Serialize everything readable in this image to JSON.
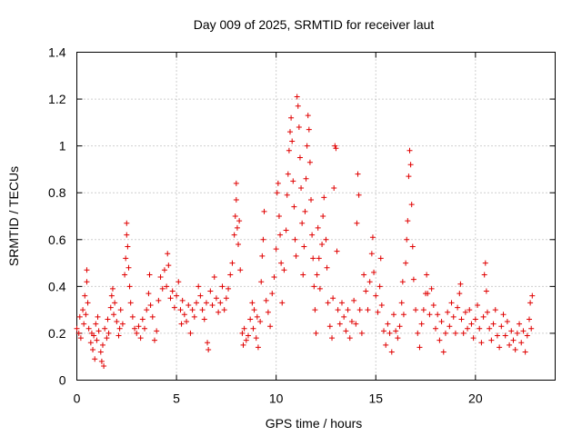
{
  "chart_data": {
    "type": "scatter",
    "title": "Day 009 of 2025, SRMTID for receiver laut",
    "xlabel": "GPS time / hours",
    "ylabel": "SRMTID / TECUs",
    "xlim": [
      0,
      24
    ],
    "ylim": [
      0,
      1.4
    ],
    "xticks": [
      0,
      5,
      10,
      15,
      20
    ],
    "yticks": [
      0,
      0.2,
      0.4,
      0.6,
      0.8,
      1,
      1.2,
      1.4
    ],
    "xtick_labels": [
      "0",
      "5",
      "10",
      "15",
      "20"
    ],
    "ytick_labels": [
      "0",
      "0.2",
      "0.4",
      "0.6",
      "0.8",
      "1",
      "1.2",
      "1.4"
    ],
    "grid": true,
    "marker": "+",
    "color": "#e00000",
    "series": [
      {
        "name": "SRMTID",
        "points": [
          [
            0.0,
            0.22
          ],
          [
            0.1,
            0.2
          ],
          [
            0.15,
            0.27
          ],
          [
            0.2,
            0.18
          ],
          [
            0.3,
            0.3
          ],
          [
            0.35,
            0.24
          ],
          [
            0.4,
            0.36
          ],
          [
            0.45,
            0.28
          ],
          [
            0.5,
            0.47
          ],
          [
            0.5,
            0.42
          ],
          [
            0.55,
            0.33
          ],
          [
            0.6,
            0.22
          ],
          [
            0.7,
            0.16
          ],
          [
            0.75,
            0.2
          ],
          [
            0.8,
            0.13
          ],
          [
            0.85,
            0.19
          ],
          [
            0.9,
            0.09
          ],
          [
            0.95,
            0.24
          ],
          [
            1.0,
            0.17
          ],
          [
            1.05,
            0.27
          ],
          [
            1.1,
            0.21
          ],
          [
            1.2,
            0.12
          ],
          [
            1.25,
            0.08
          ],
          [
            1.3,
            0.15
          ],
          [
            1.35,
            0.06
          ],
          [
            1.4,
            0.22
          ],
          [
            1.5,
            0.18
          ],
          [
            1.55,
            0.26
          ],
          [
            1.6,
            0.2
          ],
          [
            1.7,
            0.31
          ],
          [
            1.75,
            0.36
          ],
          [
            1.8,
            0.39
          ],
          [
            1.85,
            0.28
          ],
          [
            1.9,
            0.33
          ],
          [
            2.0,
            0.25
          ],
          [
            2.1,
            0.19
          ],
          [
            2.15,
            0.22
          ],
          [
            2.2,
            0.3
          ],
          [
            2.3,
            0.24
          ],
          [
            2.4,
            0.45
          ],
          [
            2.45,
            0.52
          ],
          [
            2.5,
            0.62
          ],
          [
            2.5,
            0.67
          ],
          [
            2.55,
            0.57
          ],
          [
            2.6,
            0.48
          ],
          [
            2.65,
            0.4
          ],
          [
            2.7,
            0.33
          ],
          [
            2.8,
            0.27
          ],
          [
            2.9,
            0.22
          ],
          [
            3.0,
            0.2
          ],
          [
            3.1,
            0.23
          ],
          [
            3.2,
            0.18
          ],
          [
            3.3,
            0.26
          ],
          [
            3.4,
            0.22
          ],
          [
            3.5,
            0.3
          ],
          [
            3.6,
            0.37
          ],
          [
            3.65,
            0.45
          ],
          [
            3.7,
            0.32
          ],
          [
            3.8,
            0.27
          ],
          [
            3.9,
            0.17
          ],
          [
            4.0,
            0.21
          ],
          [
            4.1,
            0.34
          ],
          [
            4.2,
            0.44
          ],
          [
            4.3,
            0.39
          ],
          [
            4.4,
            0.47
          ],
          [
            4.5,
            0.4
          ],
          [
            4.55,
            0.54
          ],
          [
            4.6,
            0.49
          ],
          [
            4.7,
            0.35
          ],
          [
            4.8,
            0.38
          ],
          [
            4.9,
            0.31
          ],
          [
            5.0,
            0.36
          ],
          [
            5.1,
            0.42
          ],
          [
            5.2,
            0.3
          ],
          [
            5.25,
            0.24
          ],
          [
            5.3,
            0.34
          ],
          [
            5.4,
            0.28
          ],
          [
            5.5,
            0.25
          ],
          [
            5.6,
            0.32
          ],
          [
            5.7,
            0.2
          ],
          [
            5.8,
            0.3
          ],
          [
            5.9,
            0.27
          ],
          [
            6.0,
            0.33
          ],
          [
            6.1,
            0.4
          ],
          [
            6.2,
            0.36
          ],
          [
            6.3,
            0.3
          ],
          [
            6.4,
            0.26
          ],
          [
            6.5,
            0.33
          ],
          [
            6.55,
            0.16
          ],
          [
            6.6,
            0.13
          ],
          [
            6.7,
            0.38
          ],
          [
            6.8,
            0.32
          ],
          [
            6.9,
            0.44
          ],
          [
            7.0,
            0.35
          ],
          [
            7.1,
            0.29
          ],
          [
            7.2,
            0.33
          ],
          [
            7.3,
            0.4
          ],
          [
            7.4,
            0.3
          ],
          [
            7.5,
            0.35
          ],
          [
            7.6,
            0.39
          ],
          [
            7.7,
            0.45
          ],
          [
            7.8,
            0.5
          ],
          [
            7.9,
            0.62
          ],
          [
            7.95,
            0.7
          ],
          [
            8.0,
            0.77
          ],
          [
            8.0,
            0.84
          ],
          [
            8.05,
            0.65
          ],
          [
            8.1,
            0.58
          ],
          [
            8.15,
            0.68
          ],
          [
            8.2,
            0.47
          ],
          [
            8.3,
            0.2
          ],
          [
            8.35,
            0.15
          ],
          [
            8.4,
            0.22
          ],
          [
            8.5,
            0.17
          ],
          [
            8.6,
            0.19
          ],
          [
            8.7,
            0.26
          ],
          [
            8.8,
            0.33
          ],
          [
            8.85,
            0.22
          ],
          [
            8.9,
            0.3
          ],
          [
            9.0,
            0.18
          ],
          [
            9.05,
            0.27
          ],
          [
            9.1,
            0.14
          ],
          [
            9.2,
            0.25
          ],
          [
            9.25,
            0.42
          ],
          [
            9.3,
            0.53
          ],
          [
            9.35,
            0.6
          ],
          [
            9.4,
            0.72
          ],
          [
            9.5,
            0.34
          ],
          [
            9.6,
            0.29
          ],
          [
            9.7,
            0.23
          ],
          [
            9.8,
            0.37
          ],
          [
            9.9,
            0.44
          ],
          [
            10.0,
            0.56
          ],
          [
            10.05,
            0.8
          ],
          [
            10.1,
            0.84
          ],
          [
            10.15,
            0.7
          ],
          [
            10.2,
            0.62
          ],
          [
            10.25,
            0.5
          ],
          [
            10.3,
            0.33
          ],
          [
            10.4,
            0.47
          ],
          [
            10.5,
            0.64
          ],
          [
            10.55,
            0.79
          ],
          [
            10.6,
            0.88
          ],
          [
            10.65,
            0.98
          ],
          [
            10.7,
            1.06
          ],
          [
            10.75,
            1.12
          ],
          [
            10.8,
            1.02
          ],
          [
            10.85,
            0.85
          ],
          [
            10.9,
            0.74
          ],
          [
            10.95,
            0.6
          ],
          [
            11.0,
            0.53
          ],
          [
            11.05,
            1.21
          ],
          [
            11.1,
            1.17
          ],
          [
            11.15,
            1.08
          ],
          [
            11.2,
            0.95
          ],
          [
            11.25,
            0.82
          ],
          [
            11.3,
            0.67
          ],
          [
            11.35,
            0.45
          ],
          [
            11.4,
            0.57
          ],
          [
            11.45,
            0.72
          ],
          [
            11.5,
            0.86
          ],
          [
            11.55,
            1.0
          ],
          [
            11.6,
            1.13
          ],
          [
            11.65,
            1.07
          ],
          [
            11.7,
            0.93
          ],
          [
            11.75,
            0.77
          ],
          [
            11.8,
            0.62
          ],
          [
            11.85,
            0.52
          ],
          [
            11.9,
            0.4
          ],
          [
            11.95,
            0.3
          ],
          [
            12.0,
            0.2
          ],
          [
            12.05,
            0.45
          ],
          [
            12.1,
            0.65
          ],
          [
            12.15,
            0.52
          ],
          [
            12.2,
            0.39
          ],
          [
            12.3,
            0.58
          ],
          [
            12.35,
            0.7
          ],
          [
            12.4,
            0.78
          ],
          [
            12.5,
            0.6
          ],
          [
            12.55,
            0.48
          ],
          [
            12.6,
            0.33
          ],
          [
            12.7,
            0.23
          ],
          [
            12.8,
            0.18
          ],
          [
            12.85,
            0.35
          ],
          [
            12.9,
            0.82
          ],
          [
            12.95,
            1.0
          ],
          [
            13.0,
            0.99
          ],
          [
            13.05,
            0.55
          ],
          [
            13.1,
            0.3
          ],
          [
            13.2,
            0.24
          ],
          [
            13.3,
            0.33
          ],
          [
            13.4,
            0.27
          ],
          [
            13.5,
            0.21
          ],
          [
            13.6,
            0.3
          ],
          [
            13.7,
            0.18
          ],
          [
            13.8,
            0.25
          ],
          [
            13.9,
            0.34
          ],
          [
            14.0,
            0.24
          ],
          [
            14.05,
            0.67
          ],
          [
            14.1,
            0.88
          ],
          [
            14.15,
            0.79
          ],
          [
            14.2,
            0.3
          ],
          [
            14.3,
            0.2
          ],
          [
            14.4,
            0.45
          ],
          [
            14.5,
            0.38
          ],
          [
            14.6,
            0.3
          ],
          [
            14.7,
            0.42
          ],
          [
            14.8,
            0.54
          ],
          [
            14.85,
            0.61
          ],
          [
            14.9,
            0.46
          ],
          [
            15.0,
            0.36
          ],
          [
            15.1,
            0.29
          ],
          [
            15.2,
            0.4
          ],
          [
            15.25,
            0.52
          ],
          [
            15.3,
            0.32
          ],
          [
            15.4,
            0.21
          ],
          [
            15.5,
            0.15
          ],
          [
            15.6,
            0.24
          ],
          [
            15.7,
            0.2
          ],
          [
            15.8,
            0.12
          ],
          [
            15.9,
            0.28
          ],
          [
            16.0,
            0.21
          ],
          [
            16.1,
            0.18
          ],
          [
            16.2,
            0.23
          ],
          [
            16.3,
            0.33
          ],
          [
            16.35,
            0.42
          ],
          [
            16.4,
            0.28
          ],
          [
            16.5,
            0.5
          ],
          [
            16.55,
            0.6
          ],
          [
            16.6,
            0.68
          ],
          [
            16.65,
            0.87
          ],
          [
            16.7,
            0.98
          ],
          [
            16.75,
            0.92
          ],
          [
            16.8,
            0.75
          ],
          [
            16.85,
            0.57
          ],
          [
            16.9,
            0.43
          ],
          [
            17.0,
            0.3
          ],
          [
            17.1,
            0.2
          ],
          [
            17.2,
            0.14
          ],
          [
            17.3,
            0.24
          ],
          [
            17.4,
            0.3
          ],
          [
            17.5,
            0.37
          ],
          [
            17.55,
            0.45
          ],
          [
            17.6,
            0.37
          ],
          [
            17.7,
            0.28
          ],
          [
            17.8,
            0.39
          ],
          [
            17.9,
            0.32
          ],
          [
            18.0,
            0.22
          ],
          [
            18.1,
            0.28
          ],
          [
            18.2,
            0.17
          ],
          [
            18.3,
            0.25
          ],
          [
            18.4,
            0.12
          ],
          [
            18.5,
            0.2
          ],
          [
            18.6,
            0.29
          ],
          [
            18.7,
            0.23
          ],
          [
            18.8,
            0.33
          ],
          [
            18.9,
            0.27
          ],
          [
            19.0,
            0.2
          ],
          [
            19.1,
            0.31
          ],
          [
            19.2,
            0.37
          ],
          [
            19.25,
            0.41
          ],
          [
            19.3,
            0.26
          ],
          [
            19.4,
            0.2
          ],
          [
            19.5,
            0.29
          ],
          [
            19.6,
            0.22
          ],
          [
            19.7,
            0.3
          ],
          [
            19.8,
            0.24
          ],
          [
            19.9,
            0.18
          ],
          [
            20.0,
            0.26
          ],
          [
            20.1,
            0.32
          ],
          [
            20.2,
            0.22
          ],
          [
            20.3,
            0.16
          ],
          [
            20.4,
            0.27
          ],
          [
            20.45,
            0.45
          ],
          [
            20.5,
            0.5
          ],
          [
            20.55,
            0.38
          ],
          [
            20.6,
            0.29
          ],
          [
            20.7,
            0.22
          ],
          [
            20.8,
            0.17
          ],
          [
            20.9,
            0.24
          ],
          [
            21.0,
            0.3
          ],
          [
            21.1,
            0.19
          ],
          [
            21.2,
            0.14
          ],
          [
            21.3,
            0.23
          ],
          [
            21.4,
            0.28
          ],
          [
            21.5,
            0.19
          ],
          [
            21.6,
            0.25
          ],
          [
            21.7,
            0.15
          ],
          [
            21.8,
            0.21
          ],
          [
            21.9,
            0.17
          ],
          [
            22.0,
            0.13
          ],
          [
            22.1,
            0.2
          ],
          [
            22.2,
            0.24
          ],
          [
            22.3,
            0.16
          ],
          [
            22.4,
            0.21
          ],
          [
            22.5,
            0.12
          ],
          [
            22.6,
            0.19
          ],
          [
            22.7,
            0.26
          ],
          [
            22.75,
            0.33
          ],
          [
            22.8,
            0.22
          ],
          [
            22.85,
            0.36
          ]
        ]
      }
    ]
  }
}
